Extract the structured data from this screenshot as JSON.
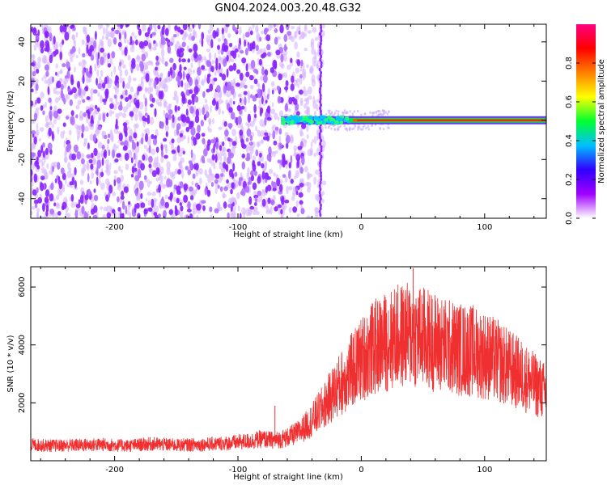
{
  "title": "GN04.2024.003.20.48.G32",
  "chart_data": [
    {
      "type": "heatmap",
      "xlabel": "Height of straight line (km)",
      "ylabel": "Frequency (Hz)",
      "xlim": [
        -268,
        150
      ],
      "ylim": [
        -50,
        49
      ],
      "x_ticks": [
        -200,
        -100,
        0,
        100
      ],
      "x_tick_labels": [
        "-200",
        "-100",
        "0",
        "100"
      ],
      "y_ticks": [
        40,
        20,
        0,
        -20,
        -40
      ],
      "y_tick_labels": [
        "40",
        "20",
        "0",
        "-20",
        "-40"
      ],
      "noise_region_x": [
        -268,
        -30
      ],
      "signal_track": {
        "frequency_hz": 0,
        "x_start": -65,
        "x_end": 150
      },
      "colorbar": {
        "label": "Normalized spectral amplitude",
        "range": [
          0,
          1
        ],
        "ticks": [
          0.0,
          0.2,
          0.4,
          0.6,
          0.8
        ],
        "tick_labels": [
          "0.0",
          "0.2",
          "0.4",
          "0.6",
          "0.8"
        ],
        "colors": [
          "#ffffff",
          "#a000ff",
          "#3000ff",
          "#00c0ff",
          "#00ff30",
          "#ffff00",
          "#ff8000",
          "#ff0000",
          "#ff0080"
        ]
      }
    },
    {
      "type": "line",
      "xlabel": "Height of straight line (km)",
      "ylabel": "SNR (10 * v/v)",
      "xlim": [
        -268,
        150
      ],
      "ylim": [
        0,
        6700
      ],
      "x_ticks": [
        -200,
        -100,
        0,
        100
      ],
      "x_tick_labels": [
        "-200",
        "-100",
        "0",
        "100"
      ],
      "y_ticks": [
        2000,
        4000,
        6000
      ],
      "y_tick_labels": [
        "2000",
        "4000",
        "6000"
      ],
      "color": "#f03030",
      "series": [
        {
          "x": [
            -268,
            -250,
            -230,
            -210,
            -190,
            -170,
            -150,
            -130,
            -110,
            -90,
            -80,
            -70,
            -60,
            -50,
            -40,
            -30,
            -20,
            -10,
            0,
            10,
            20,
            30,
            40,
            50,
            60,
            70,
            80,
            90,
            100,
            110,
            120,
            130,
            140,
            150
          ],
          "values": [
            550,
            520,
            540,
            560,
            520,
            580,
            540,
            560,
            600,
            680,
            750,
            700,
            800,
            1000,
            1400,
            1900,
            2500,
            3000,
            3500,
            3900,
            4100,
            4300,
            4350,
            4250,
            4100,
            3950,
            3850,
            3800,
            3650,
            3450,
            3200,
            2950,
            2650,
            2350
          ],
          "peaks": [
            {
              "x": 42,
              "y": 6650
            },
            {
              "x": -70,
              "y": 1900
            },
            {
              "x": 15,
              "y": 5100
            },
            {
              "x": 47,
              "y": 5600
            }
          ]
        }
      ]
    }
  ]
}
